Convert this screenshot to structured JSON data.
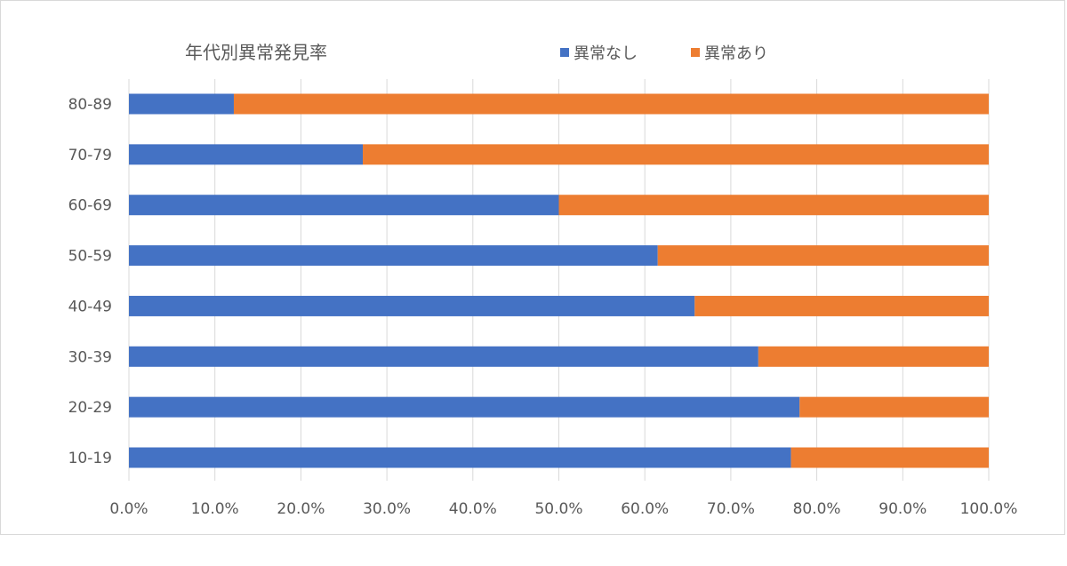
{
  "chart_data": {
    "type": "bar",
    "orientation": "horizontal",
    "stacked": "100%",
    "title": "年代別異常発見率",
    "categories": [
      "80-89",
      "70-79",
      "60-69",
      "50-59",
      "40-49",
      "30-39",
      "20-29",
      "10-19"
    ],
    "series": [
      {
        "name": "異常なし",
        "color": "#4472c4",
        "values": [
          0.122,
          0.272,
          0.5,
          0.615,
          0.658,
          0.732,
          0.78,
          0.77
        ]
      },
      {
        "name": "異常あり",
        "color": "#ed7d31",
        "values": [
          0.878,
          0.728,
          0.5,
          0.385,
          0.342,
          0.268,
          0.22,
          0.23
        ]
      }
    ],
    "xlim": [
      0,
      1
    ],
    "xticks": [
      "0.0%",
      "10.0%",
      "20.0%",
      "30.0%",
      "40.0%",
      "50.0%",
      "60.0%",
      "70.0%",
      "80.0%",
      "90.0%",
      "100.0%"
    ],
    "grid": "vertical",
    "legend": "top"
  }
}
